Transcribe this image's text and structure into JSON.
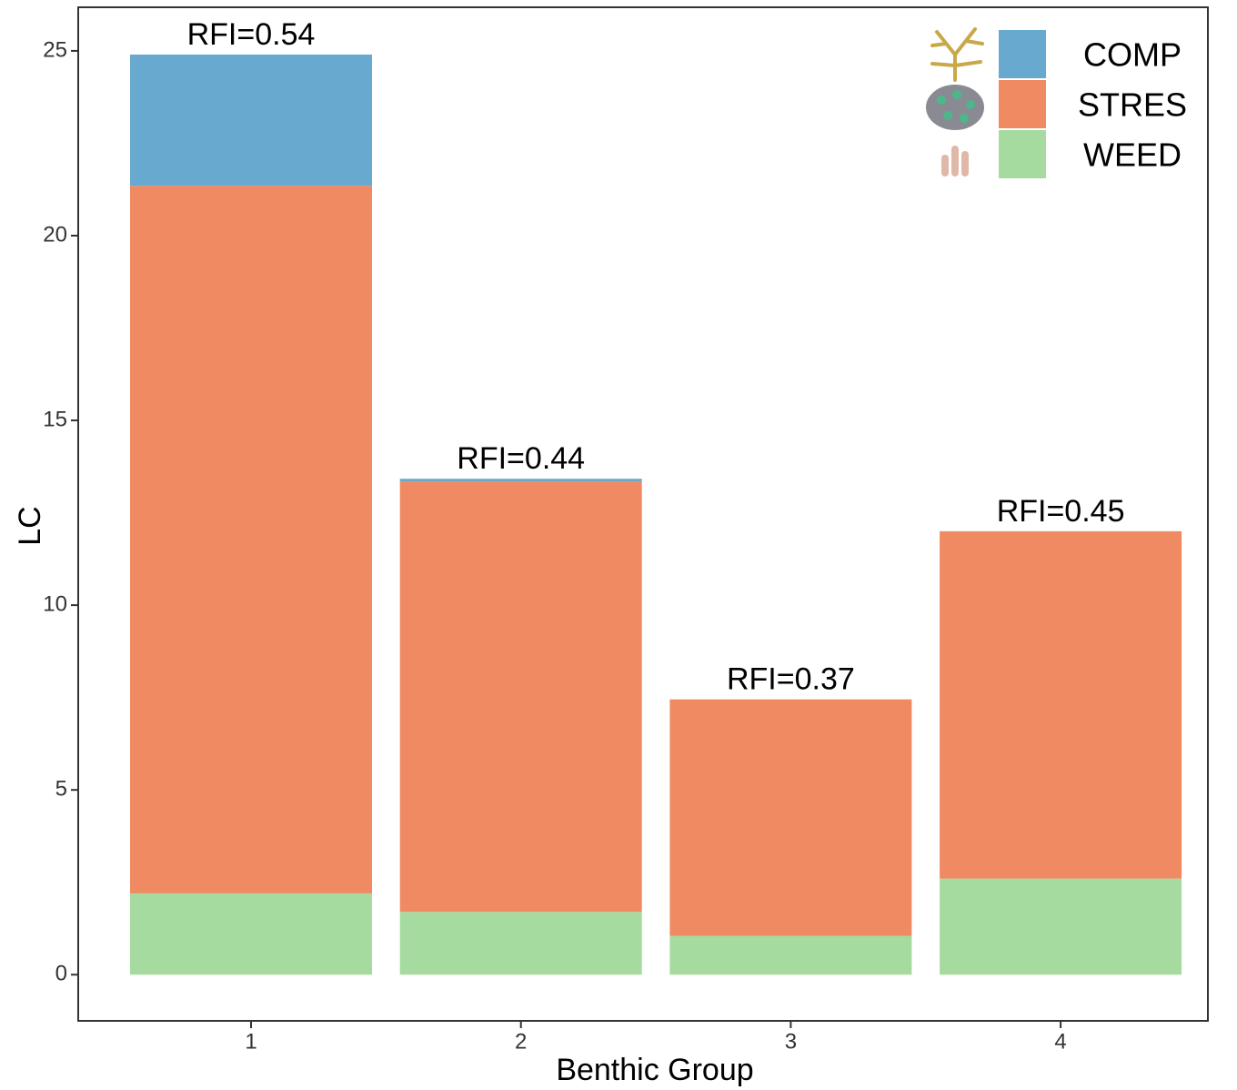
{
  "chart_data": {
    "type": "stacked_bar",
    "x_label": "Benthic Group",
    "y_label": "LC",
    "categories": [
      "1",
      "2",
      "3",
      "4"
    ],
    "series": [
      {
        "name": "COMP",
        "color": "#67a9cf",
        "values": [
          3.55,
          0.07,
          0,
          0
        ]
      },
      {
        "name": "STRES",
        "color": "#ef8a62",
        "values": [
          19.15,
          11.65,
          6.4,
          9.4
        ]
      },
      {
        "name": "WEED",
        "color": "#a6dba0",
        "values": [
          2.2,
          1.7,
          1.05,
          2.6
        ]
      }
    ],
    "annotations": [
      "RFI=0.54",
      "RFI=0.44",
      "RFI=0.37",
      "RFI=0.45"
    ],
    "ylim": [
      -1.25,
      26.18
    ],
    "yticks": [
      0,
      5,
      10,
      15,
      20,
      25
    ],
    "grid": false,
    "legend_position": "top-right"
  }
}
